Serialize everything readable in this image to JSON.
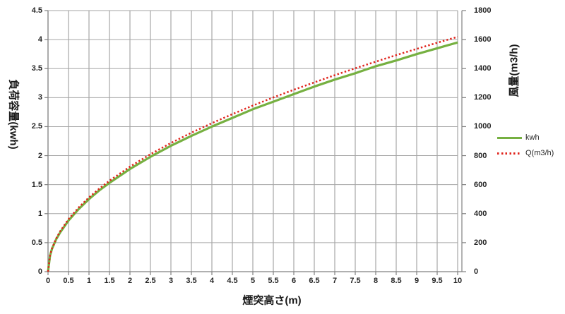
{
  "chart_data": {
    "type": "line",
    "title": "",
    "xlabel": "煙突高さ(m)",
    "ylabel_left": "負荷容量(kwh)",
    "ylabel_right": "風量(m3/h)",
    "xlim": [
      0,
      10
    ],
    "ylim_left": [
      0,
      4.5
    ],
    "ylim_right": [
      0,
      1800
    ],
    "x_ticks": [
      0,
      0.5,
      1,
      1.5,
      2,
      2.5,
      3,
      3.5,
      4,
      4.5,
      5,
      5.5,
      6,
      6.5,
      7,
      7.5,
      8,
      8.5,
      9,
      9.5,
      10
    ],
    "y_ticks_left": [
      0,
      0.5,
      1,
      1.5,
      2,
      2.5,
      3,
      3.5,
      4,
      4.5
    ],
    "y_ticks_right": [
      0,
      200,
      400,
      600,
      800,
      1000,
      1200,
      1400,
      1600,
      1800
    ],
    "grid": true,
    "legend_position": "right",
    "x": [
      0,
      0.05,
      0.1,
      0.2,
      0.3,
      0.5,
      0.75,
      1,
      1.25,
      1.5,
      2,
      2.5,
      3,
      3.5,
      4,
      4.5,
      5,
      5.5,
      6,
      6.5,
      7,
      7.5,
      8,
      8.5,
      9,
      9.5,
      10
    ],
    "series": [
      {
        "name": "kwh",
        "axis": "left",
        "style": "solid",
        "color": "#76b041",
        "values": [
          0,
          0.28,
          0.4,
          0.56,
          0.68,
          0.88,
          1.08,
          1.25,
          1.4,
          1.53,
          1.77,
          1.98,
          2.17,
          2.34,
          2.5,
          2.65,
          2.8,
          2.93,
          3.06,
          3.19,
          3.31,
          3.42,
          3.54,
          3.64,
          3.75,
          3.85,
          3.95
        ]
      },
      {
        "name": "Q(m3/h)",
        "axis": "right",
        "style": "dotted",
        "color": "#e0241c",
        "values": [
          0,
          114,
          162,
          229,
          280,
          362,
          443,
          512,
          572,
          627,
          724,
          810,
          887,
          958,
          1024,
          1086,
          1145,
          1201,
          1254,
          1305,
          1355,
          1402,
          1448,
          1493,
          1536,
          1578,
          1619
        ]
      }
    ],
    "colors": {
      "grid": "#a6a6a6",
      "axis": "#808080",
      "text": "#262626"
    }
  }
}
